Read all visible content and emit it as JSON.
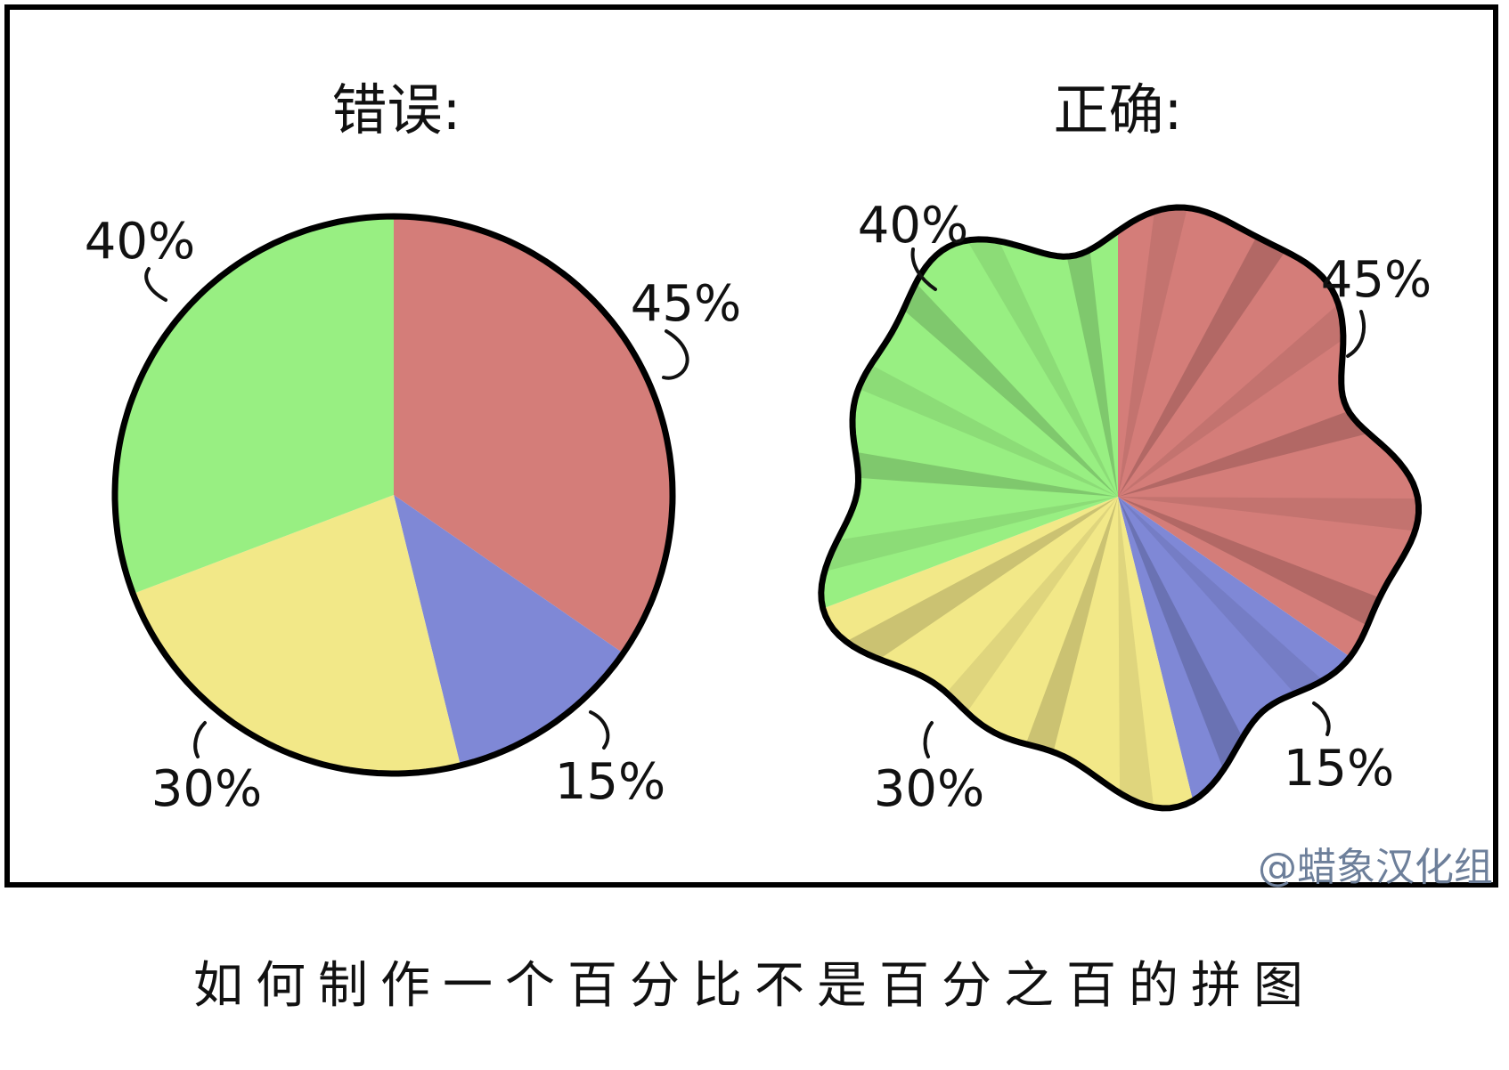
{
  "chart_data": [
    {
      "type": "pie",
      "title": "错误:",
      "slices": [
        {
          "label": "45%",
          "value": 45,
          "color": "#d47d79"
        },
        {
          "label": "15%",
          "value": 15,
          "color": "#7f88d6"
        },
        {
          "label": "30%",
          "value": 30,
          "color": "#f2e888"
        },
        {
          "label": "40%",
          "value": 40,
          "color": "#98ef82"
        }
      ]
    },
    {
      "type": "pie",
      "title": "正确:",
      "slices": [
        {
          "label": "45%",
          "value": 45,
          "color": "#d47d79"
        },
        {
          "label": "15%",
          "value": 15,
          "color": "#7f88d6"
        },
        {
          "label": "30%",
          "value": 30,
          "color": "#f2e888"
        },
        {
          "label": "40%",
          "value": 40,
          "color": "#98ef82"
        }
      ]
    }
  ],
  "caption": "如何制作一个百分比不是百分之百的拼图",
  "credit": "@蜡象汉化组"
}
